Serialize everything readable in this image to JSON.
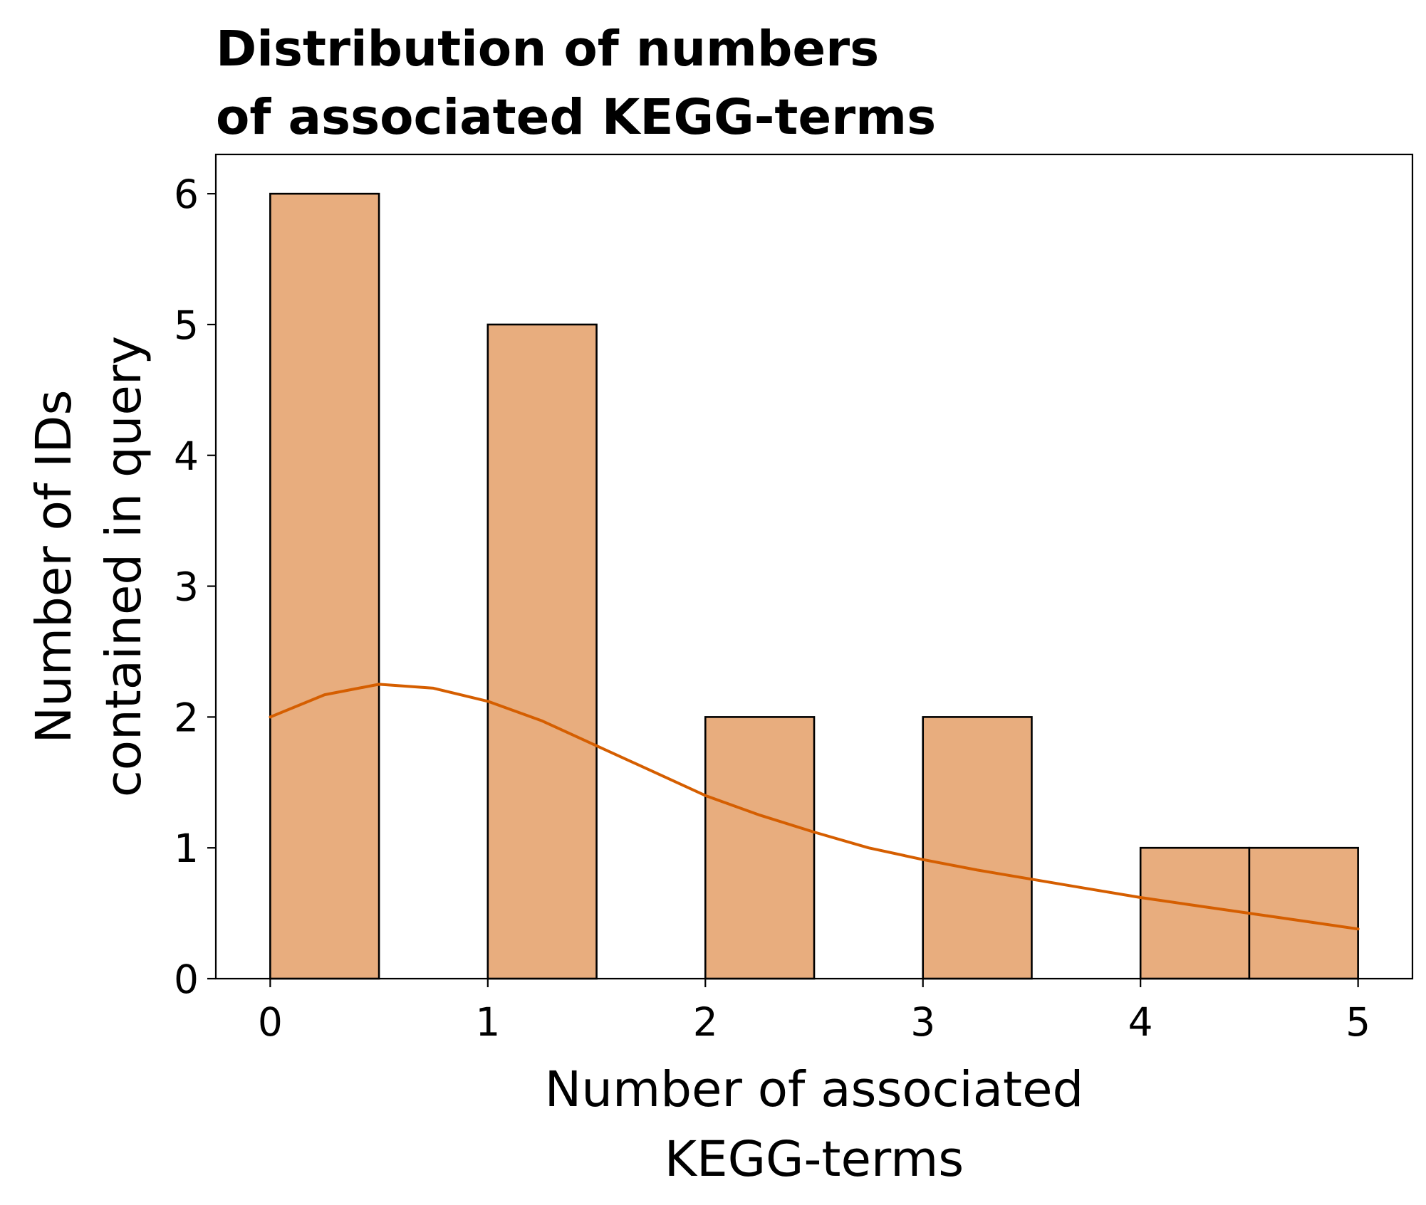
{
  "chart_data": {
    "type": "bar",
    "title_lines": [
      "Distribution of numbers",
      "of associated KEGG-terms"
    ],
    "xlabel_lines": [
      "Number of associated",
      "KEGG-terms"
    ],
    "ylabel_lines": [
      "Number of IDs",
      "contained in query"
    ],
    "xlim": [
      -0.25,
      5.25
    ],
    "ylim": [
      0,
      6.3
    ],
    "x_ticks": [
      0,
      1,
      2,
      3,
      4,
      5
    ],
    "y_ticks": [
      0,
      1,
      2,
      3,
      4,
      5,
      6
    ],
    "bin_width": 0.5,
    "bins": [
      {
        "start": 0.0,
        "end": 0.5,
        "count": 6
      },
      {
        "start": 0.5,
        "end": 1.0,
        "count": 0
      },
      {
        "start": 1.0,
        "end": 1.5,
        "count": 5
      },
      {
        "start": 1.5,
        "end": 2.0,
        "count": 0
      },
      {
        "start": 2.0,
        "end": 2.5,
        "count": 2
      },
      {
        "start": 2.5,
        "end": 3.0,
        "count": 0
      },
      {
        "start": 3.0,
        "end": 3.5,
        "count": 2
      },
      {
        "start": 3.5,
        "end": 4.0,
        "count": 0
      },
      {
        "start": 4.0,
        "end": 4.5,
        "count": 1
      },
      {
        "start": 4.5,
        "end": 5.0,
        "count": 1
      }
    ],
    "kde": {
      "x": [
        0,
        0.25,
        0.5,
        0.75,
        1.0,
        1.25,
        1.5,
        1.75,
        2.0,
        2.25,
        2.5,
        2.75,
        3.0,
        3.25,
        3.5,
        3.75,
        4.0,
        4.25,
        4.5,
        4.75,
        5.0
      ],
      "y": [
        2.0,
        2.17,
        2.25,
        2.22,
        2.12,
        1.97,
        1.78,
        1.59,
        1.4,
        1.25,
        1.12,
        1.0,
        0.91,
        0.83,
        0.76,
        0.69,
        0.62,
        0.56,
        0.5,
        0.44,
        0.38
      ]
    },
    "grid": false,
    "legend": "none",
    "colors": {
      "bar_fill": "#e8ad7e",
      "bar_edge": "#000000",
      "kde_line": "#d55e00"
    }
  }
}
